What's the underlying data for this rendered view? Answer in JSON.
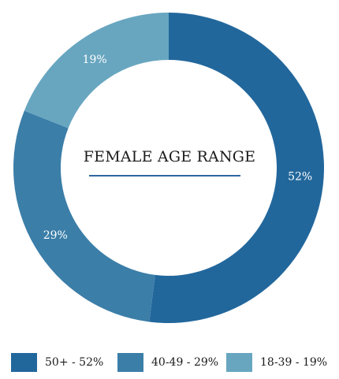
{
  "chart_data": {
    "type": "pie",
    "title": "FEMALE AGE RANGE",
    "slices": [
      {
        "label": "50+",
        "value": 52,
        "value_label": "52%",
        "legend_label": "50+ - 52%",
        "color": "#22679c"
      },
      {
        "label": "40-49",
        "value": 29,
        "value_label": "29%",
        "legend_label": "40-49 - 29%",
        "color": "#3b7ea8"
      },
      {
        "label": "18-39",
        "value": 19,
        "value_label": "19%",
        "legend_label": "18-39 - 19%",
        "color": "#68a6c0"
      }
    ],
    "donut": true,
    "legend_position": "bottom"
  }
}
